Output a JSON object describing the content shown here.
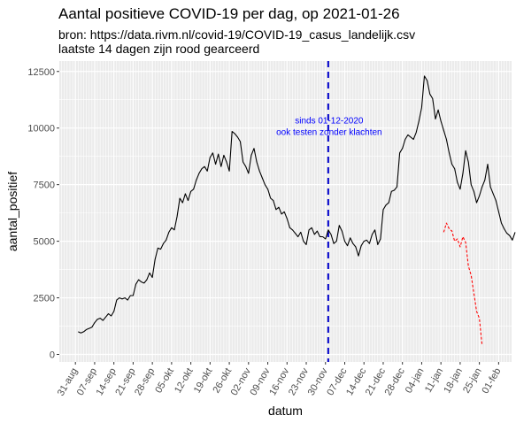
{
  "title": "Aantal positieve COVID-19 per dag, op 2021-01-26",
  "subtitle_lines": [
    "bron: https://data.rivm.nl/covid-19/COVID-19_casus_landelijk.csv",
    "laatste 14 dagen zijn rood gearceerd"
  ],
  "chart_data": {
    "type": "line",
    "xlabel": "datum",
    "ylabel": "aantal_positief",
    "ylim": [
      0,
      12500
    ],
    "y_ticks": [
      0,
      2500,
      5000,
      7500,
      10000,
      12500
    ],
    "y_tick_labels": [
      "0",
      "2500",
      "5000",
      "7500",
      "10000",
      "12500"
    ],
    "x_tick_labels": [
      "31-aug",
      "07-sep",
      "14-sep",
      "21-sep",
      "28-sep",
      "05-okt",
      "12-okt",
      "19-okt",
      "26-okt",
      "02-nov",
      "09-nov",
      "16-nov",
      "23-nov",
      "30-nov",
      "07-dec",
      "14-dec",
      "21-dec",
      "28-dec",
      "04-jan",
      "11-jan",
      "18-jan",
      "25-jan",
      "01-feb"
    ],
    "grid": true,
    "vline": {
      "date": "01-dec",
      "label_lines": [
        "sinds 01-12-2020",
        "ook testen zonder klachten"
      ],
      "color": "#0000cc"
    },
    "series": [
      {
        "style": "solid",
        "color": "#000000",
        "start_date": "2020-09-01",
        "values": [
          1000,
          950,
          1000,
          1100,
          1150,
          1200,
          1400,
          1550,
          1600,
          1500,
          1650,
          1800,
          1700,
          1900,
          2400,
          2500,
          2450,
          2500,
          2400,
          2600,
          2600,
          3100,
          3300,
          3200,
          3150,
          3300,
          3600,
          3400,
          4200,
          4700,
          4650,
          4900,
          5050,
          5400,
          5600,
          5500,
          6100,
          6900,
          6700,
          7100,
          6800,
          7200,
          7300,
          7700,
          8000,
          8200,
          8300,
          8100,
          8700,
          8900,
          8400,
          8850,
          8300,
          8800,
          8500,
          8100,
          9850,
          9750,
          9600,
          9400,
          8500,
          8300,
          8000,
          8800,
          9100,
          8500,
          8100,
          7800,
          7500,
          7300,
          6900,
          6800,
          6400,
          6500,
          6200,
          6300,
          6000,
          5600,
          5500,
          5350,
          5200,
          5400,
          5000,
          4850,
          5500,
          5600,
          5300,
          5450,
          5200,
          5200,
          5100,
          5500,
          5300,
          4900,
          5000,
          5700,
          5450,
          5000,
          4800,
          5150,
          4900,
          4750,
          4350,
          4800,
          5000,
          5050,
          4900,
          5300,
          5500,
          4850,
          5100,
          6400,
          6600,
          6700,
          7200,
          7250,
          7400,
          8900,
          9100,
          9500,
          9700,
          9600,
          9500,
          9800,
          10300,
          10900,
          12300,
          12100,
          11500,
          11300,
          10400,
          10800,
          10300,
          9900,
          9500,
          8900,
          8400,
          8200,
          7600,
          7300,
          8000,
          9000,
          8500,
          7500,
          7200,
          6700,
          7000,
          7400,
          7700,
          8400,
          7400,
          7100,
          6800,
          6300,
          5800,
          5550,
          5350,
          5250,
          5050,
          5400
        ]
      },
      {
        "style": "dashed",
        "color": "#ff0000",
        "start_date": "2021-01-12",
        "values": [
          5400,
          5800,
          5550,
          5450,
          5000,
          5100,
          4750,
          5200,
          4950,
          3900,
          3500,
          2700,
          1900,
          1600,
          400
        ]
      }
    ]
  }
}
